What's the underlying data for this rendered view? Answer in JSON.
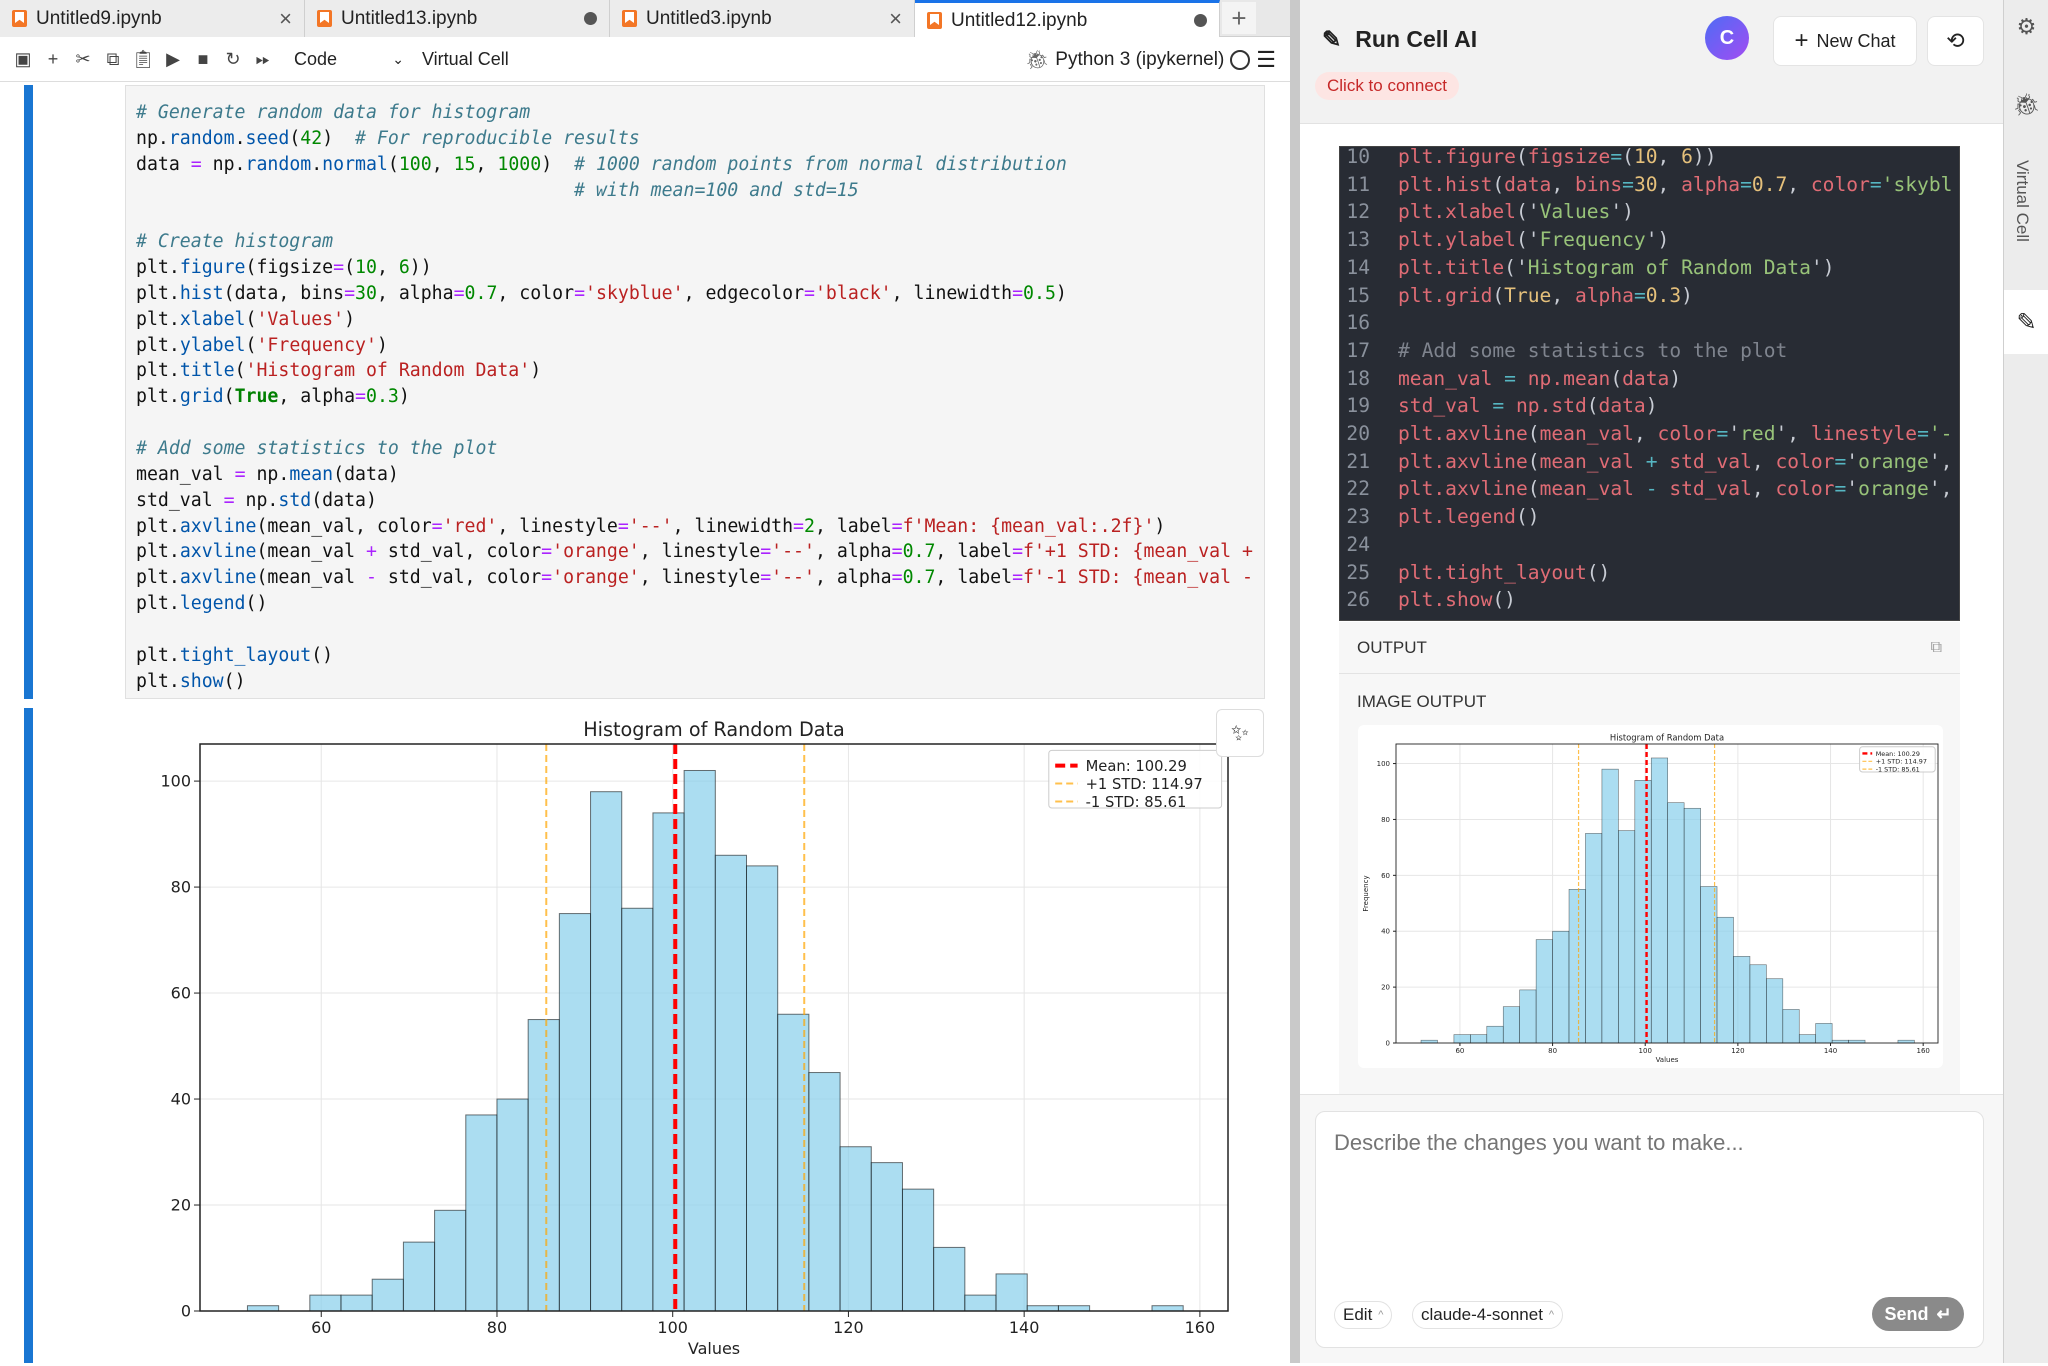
{
  "tabs": [
    {
      "label": "Untitled9.ipynb",
      "state": "close"
    },
    {
      "label": "Untitled13.ipynb",
      "state": "unsaved"
    },
    {
      "label": "Untitled3.ipynb",
      "state": "close"
    },
    {
      "label": "Untitled12.ipynb",
      "state": "unsaved",
      "active": true
    }
  ],
  "new_tab": "+",
  "toolbar": {
    "icons": [
      "save-icon",
      "add-cell-icon",
      "cut-icon",
      "copy-icon",
      "paste-icon",
      "run-icon",
      "stop-icon",
      "restart-icon",
      "run-all-icon"
    ],
    "cell_type": "Code",
    "virtual_cell": "Virtual Cell",
    "kernel": "Python 3 (ipykernel)"
  },
  "code_cell": {
    "lines": [
      "# Generate random data for histogram",
      "np.random.seed(42)  # For reproducible results",
      "data = np.random.normal(100, 15, 1000)  # 1000 random points from normal distribution",
      "                                        # with mean=100 and std=15",
      "",
      "# Create histogram",
      "plt.figure(figsize=(10, 6))",
      "plt.hist(data, bins=30, alpha=0.7, color='skyblue', edgecolor='black', linewidth=0.5)",
      "plt.xlabel('Values')",
      "plt.ylabel('Frequency')",
      "plt.title('Histogram of Random Data')",
      "plt.grid(True, alpha=0.3)",
      "",
      "# Add some statistics to the plot",
      "mean_val = np.mean(data)",
      "std_val = np.std(data)",
      "plt.axvline(mean_val, color='red', linestyle='--', linewidth=2, label=f'Mean: {mean_val:.2f}')",
      "plt.axvline(mean_val + std_val, color='orange', linestyle='--', alpha=0.7, label=f'+1 STD: {mean_val +",
      "plt.axvline(mean_val - std_val, color='orange', linestyle='--', alpha=0.7, label=f'-1 STD: {mean_val -",
      "plt.legend()",
      "",
      "plt.tight_layout()",
      "plt.show()"
    ]
  },
  "chart_data": {
    "type": "bar",
    "title": "Histogram of Random Data",
    "xlabel": "Values",
    "ylabel": "Frequency",
    "bin_start": 51.6,
    "bin_width": 3.55,
    "values": [
      1,
      0,
      3,
      3,
      6,
      13,
      19,
      37,
      40,
      55,
      75,
      98,
      76,
      94,
      102,
      86,
      84,
      56,
      45,
      31,
      28,
      23,
      12,
      3,
      7,
      1,
      1,
      0,
      0,
      1
    ],
    "xlim": [
      46.2,
      163.2
    ],
    "ylim": [
      0,
      107
    ],
    "xticks": [
      60,
      80,
      100,
      120,
      140,
      160
    ],
    "yticks": [
      0,
      20,
      40,
      60,
      80,
      100
    ],
    "grid": true,
    "bar_color": "#87ceeb",
    "vlines": [
      {
        "x": 100.29,
        "color": "#ff0000",
        "label": "Mean: 100.29"
      },
      {
        "x": 114.97,
        "color": "#ffa500",
        "label": "+1 STD: 114.97"
      },
      {
        "x": 85.61,
        "color": "#ffa500",
        "label": "-1 STD: 85.61"
      }
    ],
    "legend_position": "top-right"
  },
  "panel": {
    "title": "Run Cell AI",
    "connect": "Click to connect",
    "avatar": "C",
    "new_chat": "New Chat",
    "code_start_line": 10,
    "code_lines": [
      "plt.figure(figsize=(10, 6))",
      "plt.hist(data, bins=30, alpha=0.7, color='skybl",
      "plt.xlabel('Values')",
      "plt.ylabel('Frequency')",
      "plt.title('Histogram of Random Data')",
      "plt.grid(True, alpha=0.3)",
      "",
      "# Add some statistics to the plot",
      "mean_val = np.mean(data)",
      "std_val = np.std(data)",
      "plt.axvline(mean_val, color='red', linestyle='-",
      "plt.axvline(mean_val + std_val, color='orange',",
      "plt.axvline(mean_val - std_val, color='orange',",
      "plt.legend()",
      "",
      "plt.tight_layout()",
      "plt.show()"
    ],
    "output_label": "OUTPUT",
    "image_output_label": "IMAGE OUTPUT",
    "prompt_placeholder": "Describe the changes you want to make...",
    "mode": "Edit",
    "model": "claude-4-sonnet",
    "send": "Send"
  },
  "side_strip": {
    "virtual_cell": "Virtual Cell"
  }
}
